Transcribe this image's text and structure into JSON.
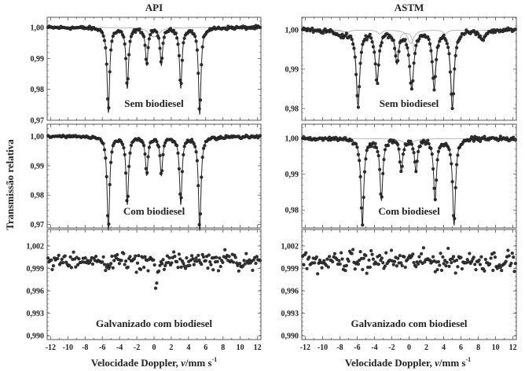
{
  "y_axis_label": "Transmissão relativa",
  "x_axis_label": "Velocidade Doppler, ",
  "x_axis_label_var": "v",
  "x_axis_label_unit": "/mm s",
  "x_axis_label_exp": "-1",
  "columns": [
    "API",
    "ASTM"
  ],
  "colors": {
    "points": "#333333",
    "fit": "#222222",
    "components": "#b0b0b0",
    "axes": "#555555"
  },
  "chart_data": [
    {
      "type": "scatter",
      "column": "API",
      "title": "API",
      "annotation": "Sem biodiesel",
      "xlim": [
        -12.4,
        12.4
      ],
      "xticks": [
        -12,
        -10,
        -8,
        -6,
        -4,
        -2,
        0,
        2,
        4,
        6,
        8,
        10,
        12
      ],
      "show_xticklabels": false,
      "ylim": [
        0.97,
        1.0033
      ],
      "yticks": [
        1.0,
        0.99,
        0.98,
        0.97
      ],
      "yticklabels": [
        "1,00",
        "0,99",
        "0,98",
        "0,97"
      ],
      "fit_line": true,
      "noise": 0.0005,
      "peaks": [
        {
          "v": -5.3,
          "depth": 0.0275,
          "fwhm": 0.35
        },
        {
          "v": -3.1,
          "depth": 0.0195,
          "fwhm": 0.35
        },
        {
          "v": -0.85,
          "depth": 0.012,
          "fwhm": 0.35
        },
        {
          "v": 0.85,
          "depth": 0.012,
          "fwhm": 0.35
        },
        {
          "v": 3.1,
          "depth": 0.0195,
          "fwhm": 0.35
        },
        {
          "v": 5.3,
          "depth": 0.028,
          "fwhm": 0.35
        }
      ],
      "components": [
        [
          {
            "v": -0.3,
            "depth": 0.002,
            "fwhm": 1.0
          },
          {
            "v": 0.3,
            "depth": 0.002,
            "fwhm": 1.0
          }
        ]
      ]
    },
    {
      "type": "scatter",
      "column": "API",
      "title": "",
      "annotation": "Com biodiesel",
      "xlim": [
        -12.4,
        12.4
      ],
      "xticks": [
        -12,
        -10,
        -8,
        -6,
        -4,
        -2,
        0,
        2,
        4,
        6,
        8,
        10,
        12
      ],
      "show_xticklabels": false,
      "ylim": [
        0.9688,
        1.0042
      ],
      "yticks": [
        1.0,
        0.99,
        0.98,
        0.97
      ],
      "yticklabels": [
        "1,00",
        "0,99",
        "0,98",
        "0,97"
      ],
      "fit_line": true,
      "noise": 0.0005,
      "peaks": [
        {
          "v": -5.3,
          "depth": 0.032,
          "fwhm": 0.35
        },
        {
          "v": -3.1,
          "depth": 0.023,
          "fwhm": 0.35
        },
        {
          "v": -0.85,
          "depth": 0.013,
          "fwhm": 0.35
        },
        {
          "v": 0.85,
          "depth": 0.013,
          "fwhm": 0.35
        },
        {
          "v": 3.1,
          "depth": 0.023,
          "fwhm": 0.35
        },
        {
          "v": 5.3,
          "depth": 0.032,
          "fwhm": 0.35
        }
      ],
      "components": []
    },
    {
      "type": "scatter",
      "column": "API",
      "title": "",
      "annotation": "Galvanizado com biodiesel",
      "xlim": [
        -12.4,
        12.4
      ],
      "xticks": [
        -12,
        -10,
        -8,
        -6,
        -4,
        -2,
        0,
        2,
        4,
        6,
        8,
        10,
        12
      ],
      "xticklabels": [
        "-12",
        "-10",
        "-8",
        "-6",
        "-4",
        "-2",
        "0",
        "2",
        "4",
        "6",
        "8",
        "10",
        "12"
      ],
      "show_xticklabels": true,
      "ylim": [
        0.9895,
        1.0042
      ],
      "yticks": [
        1.002,
        0.999,
        0.996,
        0.993,
        0.99
      ],
      "yticklabels": [
        "1,002",
        "0,999",
        "0,996",
        "0,993",
        "0,990"
      ],
      "fit_line": false,
      "noise": 0.0011,
      "peaks": [
        {
          "v": 0.25,
          "depth": 0.0035,
          "fwhm": 0.4
        }
      ],
      "components": []
    },
    {
      "type": "scatter",
      "column": "ASTM",
      "title": "ASTM",
      "annotation": "Sem biodiesel",
      "xlim": [
        -12.4,
        12.4
      ],
      "xticks": [
        -12,
        -10,
        -8,
        -6,
        -4,
        -2,
        0,
        2,
        4,
        6,
        8,
        10,
        12
      ],
      "show_xticklabels": false,
      "ylim": [
        0.977,
        1.0032
      ],
      "yticks": [
        1.0,
        0.99,
        0.98
      ],
      "yticklabels": [
        "1,00",
        "0,99",
        "0,98"
      ],
      "fit_line": true,
      "noise": 0.0006,
      "peaks": [
        {
          "v": -5.9,
          "depth": 0.019,
          "fwhm": 0.5
        },
        {
          "v": -3.7,
          "depth": 0.013,
          "fwhm": 0.5
        },
        {
          "v": -1.4,
          "depth": 0.008,
          "fwhm": 0.5
        },
        {
          "v": 0.3,
          "depth": 0.0145,
          "fwhm": 0.6
        },
        {
          "v": 2.9,
          "depth": 0.0145,
          "fwhm": 0.5
        },
        {
          "v": 5.0,
          "depth": 0.0195,
          "fwhm": 0.5
        },
        {
          "v": 8.5,
          "depth": 0.0025,
          "fwhm": 0.8
        },
        {
          "v": -8.0,
          "depth": 0.0015,
          "fwhm": 1.2
        }
      ],
      "components": [
        [
          {
            "v": -5.9,
            "depth": 0.017,
            "fwhm": 0.5
          },
          {
            "v": -3.7,
            "depth": 0.012,
            "fwhm": 0.5
          },
          {
            "v": -1.4,
            "depth": 0.006,
            "fwhm": 0.5
          },
          {
            "v": 0.7,
            "depth": 0.006,
            "fwhm": 0.5
          },
          {
            "v": 2.9,
            "depth": 0.012,
            "fwhm": 0.5
          },
          {
            "v": 5.0,
            "depth": 0.017,
            "fwhm": 0.5
          }
        ],
        [
          {
            "v": 0.2,
            "depth": 0.0035,
            "fwhm": 0.8
          },
          {
            "v": -3.4,
            "depth": 0.001,
            "fwhm": 0.6
          },
          {
            "v": 4.2,
            "depth": 0.001,
            "fwhm": 0.6
          },
          {
            "v": 8.5,
            "depth": 0.0015,
            "fwhm": 0.8
          },
          {
            "v": -7.2,
            "depth": 0.0007,
            "fwhm": 0.8
          }
        ]
      ]
    },
    {
      "type": "scatter",
      "column": "ASTM",
      "title": "",
      "annotation": "Com biodiesel",
      "xlim": [
        -12.4,
        12.4
      ],
      "xticks": [
        -12,
        -10,
        -8,
        -6,
        -4,
        -2,
        0,
        2,
        4,
        6,
        8,
        10,
        12
      ],
      "show_xticklabels": false,
      "ylim": [
        0.975,
        1.004
      ],
      "yticks": [
        1.0,
        0.99,
        0.98
      ],
      "yticklabels": [
        "1,00",
        "0,99",
        "0,98"
      ],
      "fit_line": true,
      "noise": 0.0006,
      "peaks": [
        {
          "v": -5.4,
          "depth": 0.024,
          "fwhm": 0.4
        },
        {
          "v": -3.2,
          "depth": 0.017,
          "fwhm": 0.4
        },
        {
          "v": -0.9,
          "depth": 0.009,
          "fwhm": 0.4
        },
        {
          "v": 0.8,
          "depth": 0.009,
          "fwhm": 0.4
        },
        {
          "v": 3.0,
          "depth": 0.017,
          "fwhm": 0.4
        },
        {
          "v": 5.2,
          "depth": 0.024,
          "fwhm": 0.4
        }
      ],
      "components": [
        [
          {
            "v": -0.1,
            "depth": 0.0015,
            "fwhm": 1.5
          }
        ]
      ]
    },
    {
      "type": "scatter",
      "column": "ASTM",
      "title": "",
      "annotation": "Galvanizado com biodiesel",
      "xlim": [
        -12.4,
        12.4
      ],
      "xticks": [
        -12,
        -10,
        -8,
        -6,
        -4,
        -2,
        0,
        2,
        4,
        6,
        8,
        10,
        12
      ],
      "xticklabels": [
        "-12",
        "-10",
        "-8",
        "-6",
        "-4",
        "-2",
        "0",
        "2",
        "4",
        "6",
        "8",
        "10",
        "12"
      ],
      "show_xticklabels": true,
      "ylim": [
        0.9895,
        1.0042
      ],
      "yticks": [
        1.002,
        0.999,
        0.996,
        0.993,
        0.99
      ],
      "yticklabels": [
        "1,002",
        "0,999",
        "0,996",
        "0,993",
        "0,990"
      ],
      "fit_line": false,
      "noise": 0.0013,
      "peaks": [],
      "components": []
    }
  ]
}
